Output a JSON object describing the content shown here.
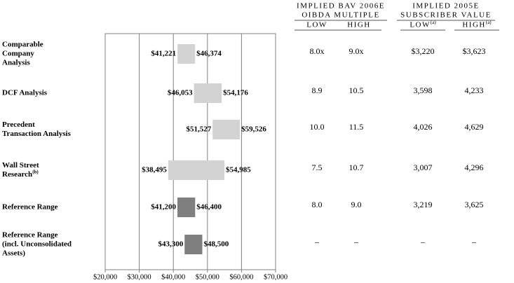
{
  "chart_data": {
    "type": "range",
    "categories": [
      [
        "Comparable",
        "Company",
        "Analysis"
      ],
      [
        "DCF Analysis"
      ],
      [
        "Precedent",
        "Transaction Analysis"
      ],
      [
        "Wall Street",
        "Research"
      ],
      [
        "Reference Range"
      ],
      [
        "Reference Range",
        "(incl. Unconsolidated",
        "Assets)"
      ]
    ],
    "footnotes": [
      null,
      null,
      null,
      "(b)",
      null,
      null
    ],
    "low": [
      41221,
      46053,
      51527,
      38495,
      41200,
      43300
    ],
    "high": [
      46374,
      54176,
      59526,
      54985,
      46400,
      48500
    ],
    "low_labels": [
      "$41,221",
      "$46,053",
      "$51,527",
      "$38,495",
      "$41,200",
      "$43,300"
    ],
    "high_labels": [
      "$46,374",
      "$54,176",
      "$59,526",
      "$54,985",
      "$46,400",
      "$48,500"
    ],
    "colors": [
      "#d3d3d3",
      "#d3d3d3",
      "#d3d3d3",
      "#d3d3d3",
      "#7f7f7f",
      "#7f7f7f"
    ],
    "xlim": [
      20000,
      70000
    ],
    "xticks": [
      {
        "value": 20000,
        "label": "$20,000"
      },
      {
        "value": 30000,
        "label": "$30,000"
      },
      {
        "value": 40000,
        "label": "$40,000"
      },
      {
        "value": 50000,
        "label": "$50,000"
      },
      {
        "value": 60000,
        "label": "$60,000"
      },
      {
        "value": 70000,
        "label": "$70,000"
      }
    ],
    "grid": true
  },
  "table": {
    "groups": [
      {
        "title": [
          "IMPLIED BAV 2006E",
          "OIBDA MULTIPLE"
        ],
        "columns": [
          {
            "label": "LOW",
            "note": null
          },
          {
            "label": "HIGH",
            "note": null
          }
        ]
      },
      {
        "title": [
          "IMPLIED 2005E",
          "SUBSCRIBER VALUE"
        ],
        "columns": [
          {
            "label": "LOW",
            "note": "(a)"
          },
          {
            "label": "HIGH",
            "note": "(a)"
          }
        ]
      }
    ],
    "rows": [
      [
        "8.0x",
        "9.0x",
        "$3,220",
        "$3,623"
      ],
      [
        "8.9",
        "10.5",
        "3,598",
        "4,233"
      ],
      [
        "10.0",
        "11.5",
        "4,026",
        "4,629"
      ],
      [
        "7.5",
        "10.7",
        "3,007",
        "4,296"
      ],
      [
        "8.0",
        "9.0",
        "3,219",
        "3,625"
      ],
      [
        "–",
        "–",
        "–",
        "–"
      ]
    ]
  }
}
